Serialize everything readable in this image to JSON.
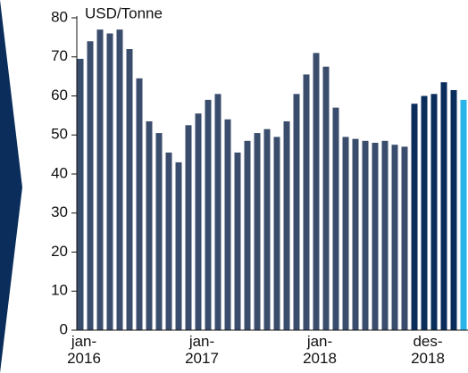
{
  "chart_data": {
    "type": "bar",
    "y_label": "USD/Tonne",
    "categories": [
      "jan-2016",
      null,
      null,
      null,
      null,
      null,
      null,
      null,
      null,
      null,
      null,
      null,
      "jan-2017",
      null,
      null,
      null,
      null,
      null,
      null,
      null,
      null,
      null,
      null,
      null,
      "jan-2018",
      null,
      null,
      null,
      null,
      null,
      null,
      null,
      null,
      null,
      null,
      "des-2018",
      null,
      null,
      null,
      null
    ],
    "values": [
      69.5,
      74,
      77,
      76,
      77,
      72,
      64.5,
      53.5,
      50.5,
      45.5,
      43,
      52.5,
      55.5,
      59,
      60.5,
      54,
      45.5,
      48.5,
      50.5,
      51.5,
      49.5,
      53.5,
      60.5,
      65.5,
      71,
      67.5,
      57,
      49.5,
      49,
      48.5,
      48,
      48.5,
      47.5,
      47,
      58,
      60,
      60.5,
      63.5,
      61.5,
      59
    ],
    "colors": [
      "#3b4d6d",
      "#3b4d6d",
      "#3b4d6d",
      "#3b4d6d",
      "#3b4d6d",
      "#3b4d6d",
      "#3b4d6d",
      "#3b4d6d",
      "#3b4d6d",
      "#3b4d6d",
      "#3b4d6d",
      "#3b4d6d",
      "#3b4d6d",
      "#3b4d6d",
      "#3b4d6d",
      "#3b4d6d",
      "#3b4d6d",
      "#3b4d6d",
      "#3b4d6d",
      "#3b4d6d",
      "#3b4d6d",
      "#3b4d6d",
      "#3b4d6d",
      "#3b4d6d",
      "#3b4d6d",
      "#3b4d6d",
      "#3b4d6d",
      "#3b4d6d",
      "#3b4d6d",
      "#3b4d6d",
      "#3b4d6d",
      "#3b4d6d",
      "#3b4d6d",
      "#3b4d6d",
      "#0b2d5b",
      "#0b2d5b",
      "#0b2d5b",
      "#0b2d5b",
      "#0b2d5b",
      "#2ab4e8"
    ],
    "ylim": [
      0,
      80
    ],
    "yticks": [
      0,
      10,
      20,
      30,
      40,
      50,
      60,
      70,
      80
    ]
  }
}
